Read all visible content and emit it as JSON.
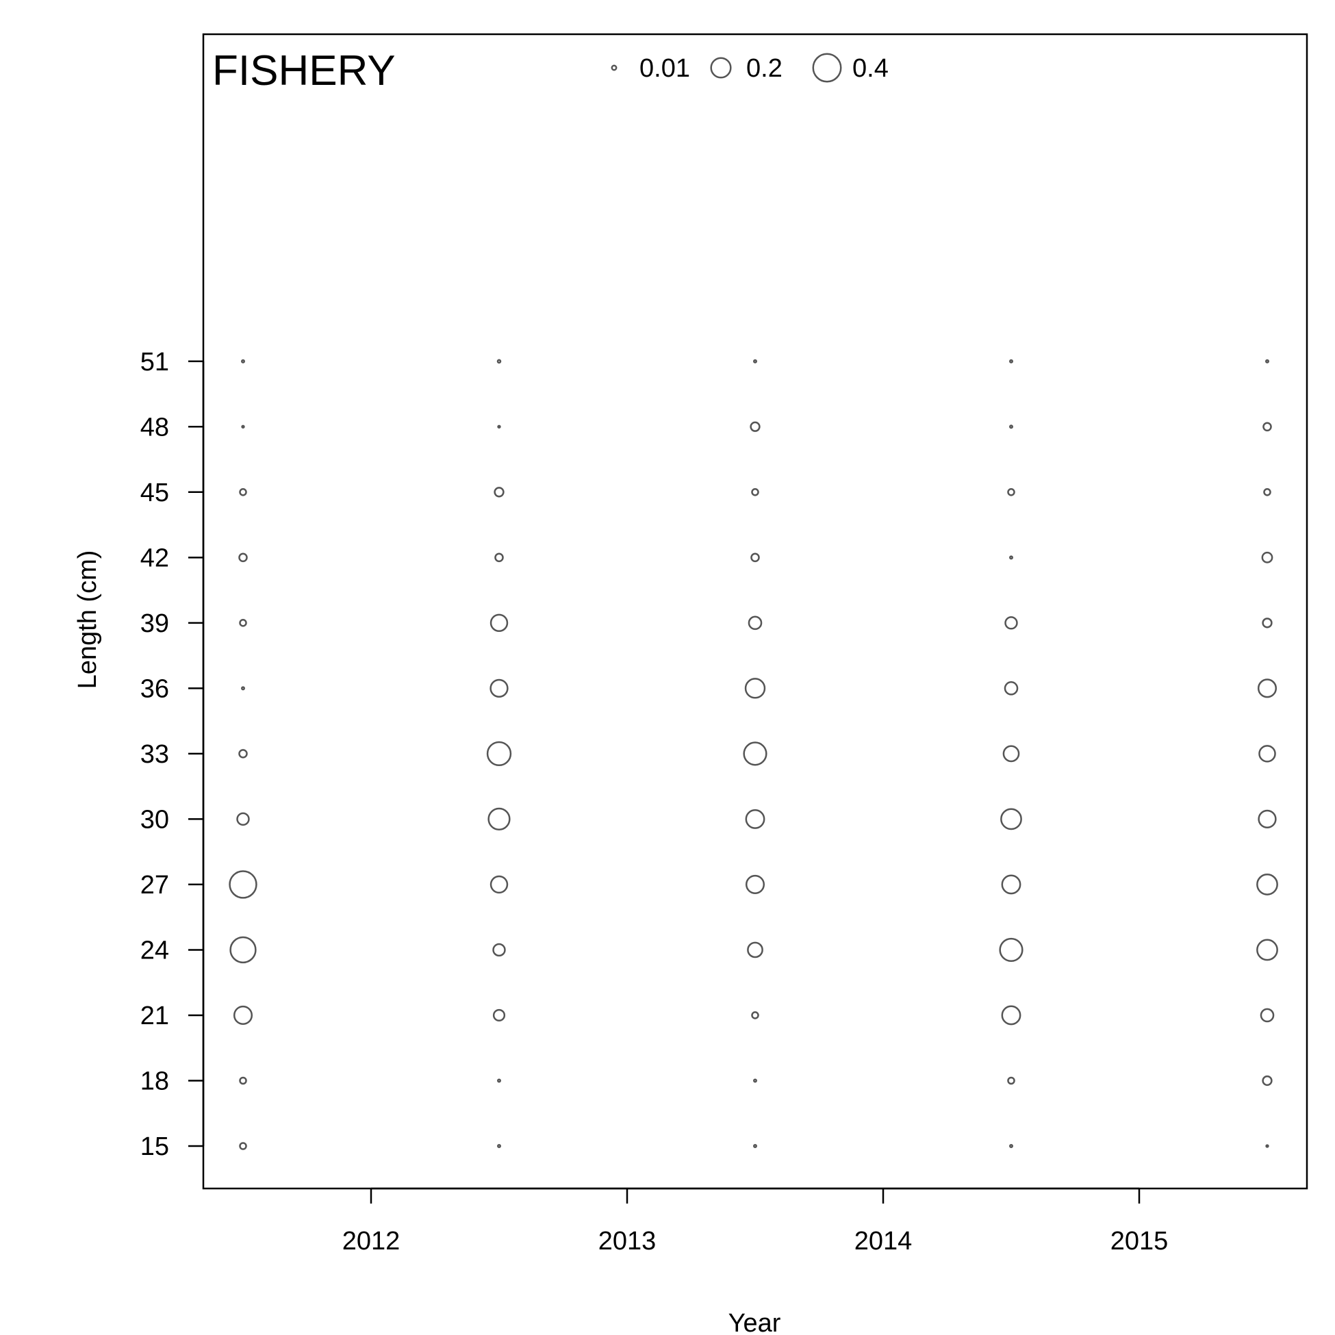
{
  "chart_data": {
    "type": "scatter",
    "subtype": "bubble",
    "panel_label": "FISHERY",
    "xlabel": "Year",
    "ylabel": "Length (cm)",
    "x_ticks": [
      "2012",
      "2013",
      "2014",
      "2015"
    ],
    "y_ticks": [
      "15",
      "18",
      "21",
      "24",
      "27",
      "30",
      "33",
      "36",
      "39",
      "42",
      "45",
      "48",
      "51"
    ],
    "xlim": [
      2011.35,
      2015.65
    ],
    "ylim": [
      13,
      70
    ],
    "grid": false,
    "legend_position": "top",
    "legend": [
      {
        "label": "0.01",
        "value": 0.01
      },
      {
        "label": "0.2",
        "value": 0.2
      },
      {
        "label": "0.4",
        "value": 0.4
      }
    ],
    "lengths": [
      15,
      18,
      21,
      24,
      27,
      30,
      33,
      36,
      39,
      42,
      45,
      48,
      51
    ],
    "series": [
      {
        "x": 2011.5,
        "values": [
          0.02,
          0.02,
          0.16,
          0.33,
          0.37,
          0.07,
          0.03,
          0.003,
          0.02,
          0.03,
          0.02,
          0.002,
          0.003
        ]
      },
      {
        "x": 2012.5,
        "values": [
          0.003,
          0.003,
          0.06,
          0.07,
          0.14,
          0.23,
          0.28,
          0.15,
          0.14,
          0.03,
          0.04,
          0.002,
          0.004
        ]
      },
      {
        "x": 2013.5,
        "values": [
          0.003,
          0.003,
          0.02,
          0.11,
          0.16,
          0.17,
          0.26,
          0.19,
          0.08,
          0.03,
          0.02,
          0.04,
          0.003
        ]
      },
      {
        "x": 2014.5,
        "values": [
          0.003,
          0.02,
          0.17,
          0.26,
          0.17,
          0.21,
          0.12,
          0.08,
          0.07,
          0.003,
          0.02,
          0.003,
          0.003
        ]
      },
      {
        "x": 2015.5,
        "values": [
          0.002,
          0.04,
          0.08,
          0.21,
          0.21,
          0.15,
          0.13,
          0.16,
          0.04,
          0.05,
          0.02,
          0.03,
          0.003
        ]
      }
    ]
  }
}
